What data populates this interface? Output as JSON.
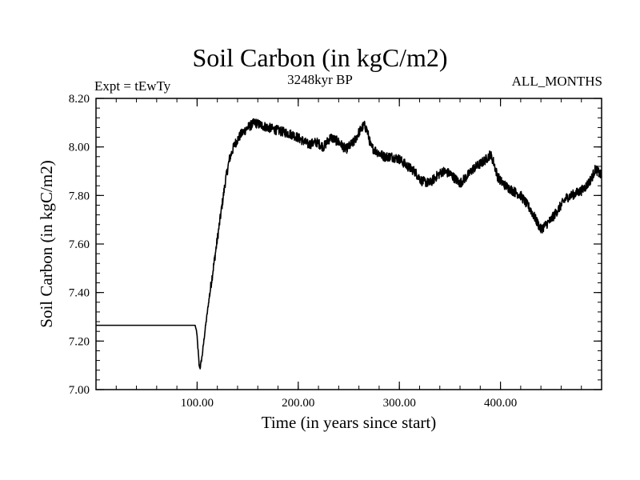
{
  "header": {
    "title": "Soil Carbon (in kgC/m2)",
    "subtitle": "3248kyr BP",
    "expt_label": "Expt = tEwTy",
    "months_label": "ALL_MONTHS"
  },
  "chart_data": {
    "type": "line",
    "title": "Soil Carbon (in kgC/m2)",
    "subtitle": "3248kyr BP",
    "xlabel": "Time (in years since start)",
    "ylabel": "Soil Carbon (in kgC/m2)",
    "xlim": [
      0,
      500
    ],
    "ylim": [
      7.0,
      8.2
    ],
    "x_ticks": [
      100,
      200,
      300,
      400
    ],
    "x_tick_labels": [
      "100.00",
      "200.00",
      "300.00",
      "400.00"
    ],
    "y_ticks": [
      7.0,
      7.2,
      7.4,
      7.6,
      7.8,
      8.0,
      8.2
    ],
    "y_tick_labels": [
      "7.00",
      "7.20",
      "7.40",
      "7.60",
      "7.80",
      "8.00",
      "8.20"
    ],
    "grid": false,
    "line_color": "#000000",
    "noise_amplitude": 0.02,
    "series": [
      {
        "name": "Soil Carbon",
        "x": [
          0,
          98,
          99.5,
          101,
          102,
          103,
          105,
          108,
          112,
          116,
          120,
          124,
          128,
          132,
          137,
          143,
          150,
          157,
          163,
          170,
          178,
          187,
          195,
          203,
          210,
          218,
          225,
          232,
          240,
          247,
          255,
          260,
          265,
          268,
          272,
          278,
          285,
          292,
          300,
          308,
          315,
          322,
          330,
          337,
          343,
          350,
          355,
          360,
          367,
          373,
          380,
          386,
          390,
          393,
          397,
          400,
          405,
          412,
          420,
          425,
          430,
          435,
          440,
          445,
          450,
          455,
          460,
          465,
          470,
          475,
          480,
          485,
          490,
          494,
          500
        ],
        "y": [
          7.265,
          7.265,
          7.24,
          7.16,
          7.1,
          7.09,
          7.14,
          7.25,
          7.38,
          7.5,
          7.62,
          7.74,
          7.86,
          7.95,
          8.01,
          8.05,
          8.08,
          8.1,
          8.09,
          8.08,
          8.07,
          8.06,
          8.05,
          8.03,
          8.01,
          8.02,
          8.0,
          8.04,
          8.02,
          7.99,
          8.02,
          8.06,
          8.09,
          8.07,
          8.0,
          7.98,
          7.96,
          7.96,
          7.95,
          7.92,
          7.9,
          7.86,
          7.85,
          7.88,
          7.9,
          7.89,
          7.87,
          7.85,
          7.88,
          7.91,
          7.93,
          7.95,
          7.97,
          7.94,
          7.88,
          7.86,
          7.84,
          7.82,
          7.8,
          7.77,
          7.74,
          7.7,
          7.66,
          7.68,
          7.7,
          7.73,
          7.76,
          7.79,
          7.8,
          7.81,
          7.82,
          7.84,
          7.87,
          7.91,
          7.88
        ]
      }
    ]
  }
}
